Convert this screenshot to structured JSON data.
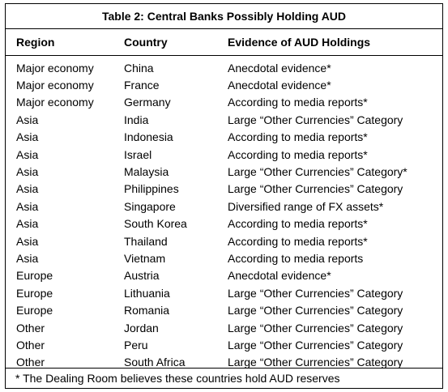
{
  "table": {
    "title": "Table 2: Central Banks Possibly Holding AUD",
    "headers": [
      "Region",
      "Country",
      "Evidence of AUD Holdings"
    ],
    "rows": [
      [
        "Major economy",
        "China",
        "Anecdotal evidence*"
      ],
      [
        "Major economy",
        "France",
        "Anecdotal evidence*"
      ],
      [
        "Major economy",
        "Germany",
        "According  to media reports*"
      ],
      [
        "Asia",
        "India",
        "Large “Other Currencies” Category"
      ],
      [
        "Asia",
        "Indonesia",
        "According  to media reports*"
      ],
      [
        "Asia",
        "Israel",
        "According  to media reports*"
      ],
      [
        "Asia",
        "Malaysia",
        "Large “Other Currencies” Category*"
      ],
      [
        "Asia",
        "Philippines",
        "Large “Other Currencies” Category"
      ],
      [
        "Asia",
        "Singapore",
        "Diversified range of  FX assets*"
      ],
      [
        "Asia",
        "South Korea",
        "According  to media reports*"
      ],
      [
        "Asia",
        "Thailand",
        "According  to media reports*"
      ],
      [
        "Asia",
        "Vietnam",
        "According  to media reports"
      ],
      [
        "Europe",
        "Austria",
        "Anecdotal evidence*"
      ],
      [
        "Europe",
        "Lithuania",
        "Large “Other Currencies” Category"
      ],
      [
        "Europe",
        "Romania",
        "Large “Other Currencies” Category"
      ],
      [
        "Other",
        "Jordan",
        "Large “Other Currencies” Category"
      ],
      [
        "Other",
        "Peru",
        "Large “Other Currencies” Category"
      ],
      [
        "Other",
        "South Africa",
        "Large “Other Currencies” Category"
      ]
    ],
    "footnote": "* The Dealing Room believes these countries hold AUD reserves"
  }
}
